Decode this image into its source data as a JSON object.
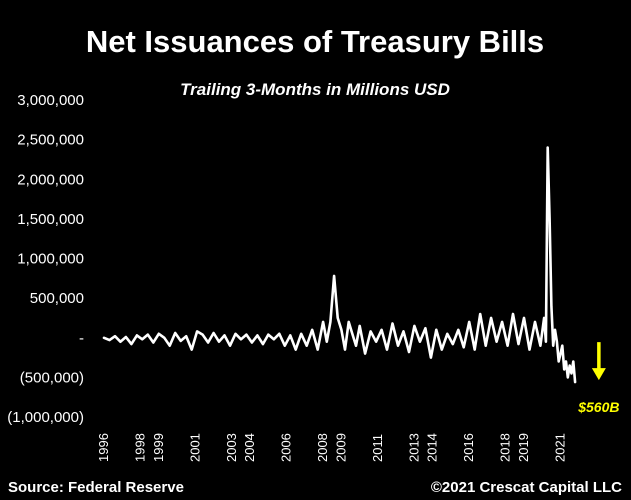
{
  "chart_data": {
    "type": "line",
    "title": "Net Issuances of Treasury Bills",
    "subtitle": "Trailing 3-Months in Millions USD",
    "xlabel": "",
    "ylabel": "",
    "source": "Source: Federal Reserve",
    "copyright": "©2021 Crescat Capital LLC",
    "ylim": [
      -1000000,
      3000000
    ],
    "xlim": [
      1996,
      2023.6
    ],
    "y_ticks": [
      3000000,
      2500000,
      2000000,
      1500000,
      1000000,
      500000,
      0,
      -500000,
      -1000000
    ],
    "y_tick_labels": [
      "3,000,000",
      "2,500,000",
      "2,000,000",
      "1,500,000",
      "1,000,000",
      "500,000",
      "-",
      "(500,000)",
      "(1,000,000)"
    ],
    "x_ticks": [
      1996,
      1998,
      1999,
      2001,
      2003,
      2004,
      2006,
      2008,
      2009,
      2011,
      2013,
      2014,
      2016,
      2018,
      2019,
      2021
    ],
    "x_tick_labels": [
      "1996",
      "1998",
      "1999",
      "2001",
      "2003",
      "2004",
      "2006",
      "2008",
      "2009",
      "2011",
      "2013",
      "2014",
      "2016",
      "2018",
      "2019",
      "2021"
    ],
    "grid": false,
    "line_color": "#ffffff",
    "annotation": {
      "text": "$560B",
      "x": 2023.1,
      "y": -560000,
      "color": "#ffff00"
    },
    "series": [
      {
        "name": "",
        "x": [
          1996.0,
          1996.3,
          1996.6,
          1996.9,
          1997.2,
          1997.5,
          1997.8,
          1998.1,
          1998.4,
          1998.7,
          1999.0,
          1999.3,
          1999.6,
          1999.9,
          2000.2,
          2000.5,
          2000.8,
          2001.1,
          2001.4,
          2001.7,
          2002.0,
          2002.3,
          2002.6,
          2002.9,
          2003.2,
          2003.5,
          2003.8,
          2004.1,
          2004.4,
          2004.7,
          2005.0,
          2005.3,
          2005.6,
          2005.9,
          2006.2,
          2006.5,
          2006.8,
          2007.1,
          2007.4,
          2007.7,
          2008.0,
          2008.2,
          2008.4,
          2008.6,
          2008.8,
          2009.0,
          2009.2,
          2009.4,
          2009.6,
          2009.8,
          2010.0,
          2010.3,
          2010.6,
          2010.9,
          2011.2,
          2011.5,
          2011.8,
          2012.1,
          2012.4,
          2012.7,
          2013.0,
          2013.3,
          2013.6,
          2013.9,
          2014.2,
          2014.5,
          2014.8,
          2015.1,
          2015.4,
          2015.7,
          2016.0,
          2016.3,
          2016.6,
          2016.9,
          2017.2,
          2017.5,
          2017.8,
          2018.1,
          2018.4,
          2018.7,
          2019.0,
          2019.3,
          2019.6,
          2019.9,
          2020.1,
          2020.2,
          2020.3,
          2020.4,
          2020.5,
          2020.6,
          2020.7,
          2020.8,
          2020.9,
          2021.0,
          2021.1,
          2021.2,
          2021.3,
          2021.4,
          2021.5,
          2021.6,
          2021.7,
          2021.8
        ],
        "y": [
          0,
          -30000,
          20000,
          -50000,
          10000,
          -80000,
          30000,
          -20000,
          40000,
          -60000,
          50000,
          0,
          -100000,
          60000,
          -40000,
          20000,
          -150000,
          80000,
          40000,
          -60000,
          60000,
          -50000,
          30000,
          -100000,
          50000,
          -20000,
          40000,
          -60000,
          30000,
          -80000,
          40000,
          -20000,
          50000,
          -100000,
          30000,
          -150000,
          50000,
          -100000,
          100000,
          -150000,
          200000,
          -50000,
          200000,
          780000,
          250000,
          100000,
          -150000,
          200000,
          50000,
          -100000,
          150000,
          -200000,
          80000,
          -50000,
          100000,
          -150000,
          180000,
          -100000,
          80000,
          -180000,
          150000,
          -50000,
          120000,
          -250000,
          100000,
          -150000,
          50000,
          -80000,
          100000,
          -120000,
          200000,
          -150000,
          300000,
          -100000,
          250000,
          -50000,
          200000,
          -100000,
          300000,
          -80000,
          250000,
          -150000,
          200000,
          -100000,
          250000,
          -50000,
          2400000,
          1500000,
          400000,
          -100000,
          100000,
          -50000,
          -300000,
          -200000,
          -100000,
          -400000,
          -300000,
          -500000,
          -350000,
          -450000,
          -300000,
          -560000
        ]
      }
    ]
  }
}
